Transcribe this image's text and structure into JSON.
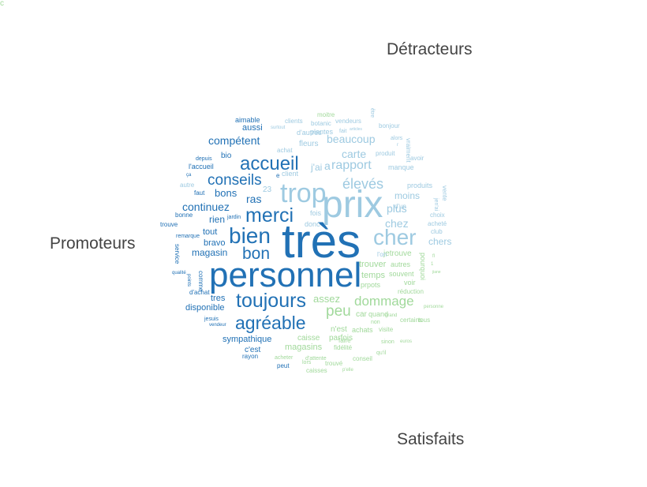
{
  "labels": {
    "detracteurs": "Détracteurs",
    "promoteurs": "Promoteurs",
    "satisfaits": "Satisfaits"
  },
  "colors": {
    "promoteurs": "#2171b5",
    "detracteurs": "#9ecae1",
    "satisfaits": "#a1d99b"
  },
  "words": [
    {
      "t": "très",
      "g": "promoteurs"
    },
    {
      "t": "personnel",
      "g": "promoteurs"
    },
    {
      "t": "prix",
      "g": "detracteurs"
    },
    {
      "t": "trop",
      "g": "detracteurs"
    },
    {
      "t": "cher",
      "g": "detracteurs"
    },
    {
      "t": "merci",
      "g": "promoteurs"
    },
    {
      "t": "toujours",
      "g": "promoteurs"
    },
    {
      "t": "bien",
      "g": "promoteurs"
    },
    {
      "t": "agréable",
      "g": "promoteurs"
    },
    {
      "t": "accueil",
      "g": "promoteurs"
    },
    {
      "t": "élevés",
      "g": "detracteurs"
    },
    {
      "t": "bon",
      "g": "promoteurs"
    },
    {
      "t": "conseils",
      "g": "promoteurs"
    },
    {
      "t": "rapport",
      "g": "detracteurs"
    },
    {
      "t": "peu",
      "g": "satisfaits"
    },
    {
      "t": "dommage",
      "g": "satisfaits"
    },
    {
      "t": "beaucoup",
      "g": "detracteurs"
    },
    {
      "t": "compétent",
      "g": "promoteurs"
    },
    {
      "t": "carte",
      "g": "detracteurs"
    },
    {
      "t": "continuez",
      "g": "promoteurs"
    },
    {
      "t": "chez",
      "g": "detracteurs"
    },
    {
      "t": "plus",
      "g": "detracteurs"
    },
    {
      "t": "ras",
      "g": "promoteurs"
    },
    {
      "t": "bons",
      "g": "promoteurs"
    },
    {
      "t": "moins",
      "g": "detracteurs"
    },
    {
      "t": "chers",
      "g": "detracteurs"
    },
    {
      "t": "magasin",
      "g": "promoteurs"
    },
    {
      "t": "assez",
      "g": "satisfaits"
    },
    {
      "t": "rien",
      "g": "promoteurs"
    },
    {
      "t": "tout",
      "g": "promoteurs"
    },
    {
      "t": "bravo",
      "g": "promoteurs"
    },
    {
      "t": "tres",
      "g": "promoteurs"
    },
    {
      "t": "disponible",
      "g": "promoteurs"
    },
    {
      "t": "sympathique",
      "g": "promoteurs"
    },
    {
      "t": "magasins",
      "g": "satisfaits"
    },
    {
      "t": "caisse",
      "g": "satisfaits"
    },
    {
      "t": "parfois",
      "g": "satisfaits"
    },
    {
      "t": "trouver",
      "g": "satisfaits"
    },
    {
      "t": "temps",
      "g": "satisfaits"
    },
    {
      "t": "car",
      "g": "satisfaits"
    },
    {
      "t": "quand",
      "g": "satisfaits"
    },
    {
      "t": "n'est",
      "g": "satisfaits"
    },
    {
      "t": "achats",
      "g": "satisfaits"
    },
    {
      "t": "j'ai",
      "g": "detracteurs"
    },
    {
      "t": "a",
      "g": "detracteurs"
    },
    {
      "t": "aussi",
      "g": "promoteurs"
    },
    {
      "t": "fleurs",
      "g": "detracteurs"
    },
    {
      "t": "l'accueil",
      "g": "promoteurs"
    },
    {
      "t": "c'est",
      "g": "promoteurs"
    },
    {
      "t": "bio",
      "g": "promoteurs"
    },
    {
      "t": "plantes",
      "g": "detracteurs"
    },
    {
      "t": "produits",
      "g": "detracteurs"
    },
    {
      "t": "manque",
      "g": "detracteurs"
    },
    {
      "t": "vente",
      "g": "detracteurs"
    },
    {
      "t": "autres",
      "g": "satisfaits"
    },
    {
      "t": "prpots",
      "g": "satisfaits"
    },
    {
      "t": "souvent",
      "g": "satisfaits"
    },
    {
      "t": "fidélité",
      "g": "satisfaits"
    },
    {
      "t": "conseil",
      "g": "satisfaits"
    },
    {
      "t": "voir",
      "g": "satisfaits"
    },
    {
      "t": "réduction",
      "g": "satisfaits"
    },
    {
      "t": "jetrouve",
      "g": "satisfaits"
    },
    {
      "t": "pourquoi",
      "g": "satisfaits"
    },
    {
      "t": "aimable",
      "g": "promoteurs"
    },
    {
      "t": "client",
      "g": "detracteurs"
    },
    {
      "t": "clients",
      "g": "detracteurs"
    },
    {
      "t": "vendeurs",
      "g": "detracteurs"
    },
    {
      "t": "botanic",
      "g": "detracteurs"
    },
    {
      "t": "d'autres",
      "g": "detracteurs"
    },
    {
      "t": "achat",
      "g": "detracteurs"
    },
    {
      "t": "fait",
      "g": "detracteurs"
    },
    {
      "t": "bonjour",
      "g": "detracteurs"
    },
    {
      "t": "produit",
      "g": "detracteurs"
    },
    {
      "t": "alors",
      "g": "detracteurs"
    },
    {
      "t": "avoir",
      "g": "detracteurs"
    },
    {
      "t": "choix",
      "g": "detracteurs"
    },
    {
      "t": "acheté",
      "g": "detracteurs"
    },
    {
      "t": "club",
      "g": "detracteurs"
    },
    {
      "t": "d'un",
      "g": "detracteurs"
    },
    {
      "t": "autre",
      "g": "detracteurs"
    },
    {
      "t": "depuis",
      "g": "promoteurs"
    },
    {
      "t": "bonne",
      "g": "promoteurs"
    },
    {
      "t": "trouve",
      "g": "promoteurs"
    },
    {
      "t": "remarque",
      "g": "promoteurs"
    },
    {
      "t": "d'achat",
      "g": "promoteurs"
    },
    {
      "t": "rayon",
      "g": "promoteurs"
    },
    {
      "t": "comme",
      "g": "promoteurs"
    },
    {
      "t": "service",
      "g": "promoteurs"
    },
    {
      "t": "jesuis",
      "g": "promoteurs"
    },
    {
      "t": "vendeur",
      "g": "promoteurs"
    },
    {
      "t": "jardin",
      "g": "promoteurs"
    },
    {
      "t": "faut",
      "g": "promoteurs"
    },
    {
      "t": "ça",
      "g": "promoteurs"
    },
    {
      "t": "qualité",
      "g": "promoteurs"
    },
    {
      "t": "points",
      "g": "promoteurs"
    },
    {
      "t": "peut",
      "g": "promoteurs"
    },
    {
      "t": "acheter",
      "g": "satisfaits"
    },
    {
      "t": "trouvé",
      "g": "satisfaits"
    },
    {
      "t": "caisses",
      "g": "satisfaits"
    },
    {
      "t": "d'attente",
      "g": "satisfaits"
    },
    {
      "t": "lors",
      "g": "satisfaits"
    },
    {
      "t": "faire",
      "g": "satisfaits"
    },
    {
      "t": "qu'il",
      "g": "satisfaits"
    },
    {
      "t": "sinon",
      "g": "satisfaits"
    },
    {
      "t": "euros",
      "g": "satisfaits"
    },
    {
      "t": "non",
      "g": "satisfaits"
    },
    {
      "t": "certains",
      "g": "satisfaits"
    },
    {
      "t": "tous",
      "g": "satisfaits"
    },
    {
      "t": "visite",
      "g": "satisfaits"
    },
    {
      "t": "personne",
      "g": "satisfaits"
    },
    {
      "t": "grand",
      "g": "satisfaits"
    },
    {
      "t": "moitre",
      "g": "satisfaits"
    },
    {
      "t": "être",
      "g": "detracteurs"
    },
    {
      "t": "articles",
      "g": "detracteurs"
    },
    {
      "t": "surtout",
      "g": "detracteurs"
    },
    {
      "t": "vraiment",
      "g": "detracteurs"
    },
    {
      "t": "jen'ai",
      "g": "detracteurs"
    },
    {
      "t": "donc",
      "g": "detracteurs"
    },
    {
      "t": "fois",
      "g": "detracteurs"
    },
    {
      "t": "23",
      "g": "detracteurs"
    },
    {
      "t": "e",
      "g": "promoteurs"
    },
    {
      "t": "r",
      "g": "detracteurs"
    },
    {
      "t": "l'on",
      "g": "detracteurs"
    },
    {
      "t": "1",
      "g": "satisfaits"
    },
    {
      "t": "fl",
      "g": "satisfaits"
    },
    {
      "t": "jiane",
      "g": "satisfaits"
    },
    {
      "t": "p'elle",
      "g": "satisfaits"
    },
    {
      "t": "c",
      "g": "satisfaits"
    }
  ]
}
